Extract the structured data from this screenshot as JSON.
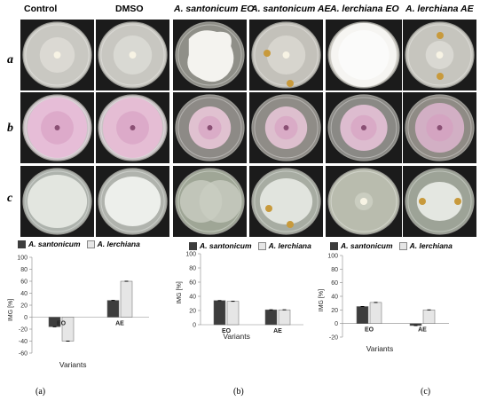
{
  "columns": [
    "Control",
    "DMSO",
    "A. santonicum EO",
    "A. santonicum AE",
    "A. lerchiana EO",
    "A. lerchiana AE"
  ],
  "rows": [
    "a",
    "b",
    "c"
  ],
  "legend": {
    "series1": "A. santonicum",
    "series2": "A. lerchiana"
  },
  "panel_labels": [
    "(a)",
    "(b)",
    "(c)"
  ],
  "colors": {
    "series1": "#3d3d3d",
    "series2": "#e6e6e6",
    "plate_dark": "#1b1b1b"
  },
  "chart_data": [
    {
      "type": "bar",
      "categories": [
        "EO",
        "AE"
      ],
      "ylabel": "IMG [%]",
      "xlabel": "Variants",
      "ylim": [
        -60,
        100
      ],
      "yticks": [
        -60,
        -40,
        -20,
        0,
        20,
        40,
        60,
        80,
        100
      ],
      "series": [
        {
          "name": "A. santonicum",
          "values": [
            -16,
            28
          ]
        },
        {
          "name": "A. lerchiana",
          "values": [
            -40,
            60
          ]
        }
      ]
    },
    {
      "type": "bar",
      "categories": [
        "EO",
        "AE"
      ],
      "ylabel": "IMG [%]",
      "xlabel": "Variants",
      "ylim": [
        0,
        100
      ],
      "yticks": [
        0,
        20,
        40,
        60,
        80,
        100
      ],
      "series": [
        {
          "name": "A. santonicum",
          "values": [
            34,
            21
          ]
        },
        {
          "name": "A. lerchiana",
          "values": [
            33,
            21
          ]
        }
      ]
    },
    {
      "type": "bar",
      "categories": [
        "EO",
        "AE"
      ],
      "ylabel": "IMG [%]",
      "xlabel": "Variants",
      "ylim": [
        -20,
        100
      ],
      "yticks": [
        -20,
        0,
        20,
        40,
        60,
        80,
        100
      ],
      "series": [
        {
          "name": "A. santonicum",
          "values": [
            25,
            -3
          ]
        },
        {
          "name": "A. lerchiana",
          "values": [
            31,
            20
          ]
        }
      ]
    }
  ]
}
